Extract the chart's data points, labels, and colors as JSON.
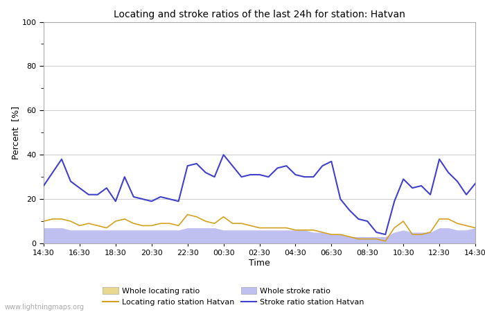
{
  "title": "Locating and stroke ratios of the last 24h for station: Hatvan",
  "ylabel": "Percent  [%]",
  "xlabel": "Time",
  "watermark": "www.lightningmaps.org",
  "xlabels": [
    "14:30",
    "16:30",
    "18:30",
    "20:30",
    "22:30",
    "00:30",
    "02:30",
    "04:30",
    "06:30",
    "08:30",
    "10:30",
    "12:30",
    "14:30"
  ],
  "ylim": [
    0,
    100
  ],
  "yticks": [
    0,
    20,
    40,
    60,
    80,
    100
  ],
  "bg_color": "#ffffff",
  "plot_bg_color": "#ffffff",
  "grid_color": "#cccccc",
  "whole_locating_color": "#e8d890",
  "whole_stroke_color": "#c0c0f0",
  "locating_station_color": "#d4a020",
  "stroke_station_color": "#4040cc",
  "x": [
    0,
    1,
    2,
    3,
    4,
    5,
    6,
    7,
    8,
    9,
    10,
    11,
    12,
    13,
    14,
    15,
    16,
    17,
    18,
    19,
    20,
    21,
    22,
    23,
    24,
    25,
    26,
    27,
    28,
    29,
    30,
    31,
    32,
    33,
    34,
    35,
    36,
    37,
    38,
    39,
    40,
    41,
    42,
    43,
    44,
    45,
    46,
    47,
    48
  ],
  "stroke_station": [
    26,
    32,
    38,
    28,
    25,
    22,
    22,
    25,
    19,
    30,
    21,
    20,
    19,
    21,
    20,
    19,
    35,
    36,
    32,
    30,
    40,
    35,
    30,
    31,
    31,
    30,
    34,
    35,
    31,
    30,
    30,
    35,
    37,
    20,
    15,
    11,
    10,
    5,
    4,
    19,
    29,
    25,
    26,
    22,
    38,
    32,
    28,
    22,
    27
  ],
  "locating_station": [
    10,
    11,
    11,
    10,
    8,
    9,
    8,
    7,
    10,
    11,
    9,
    8,
    8,
    9,
    9,
    8,
    13,
    12,
    10,
    9,
    12,
    9,
    9,
    8,
    7,
    7,
    7,
    7,
    6,
    6,
    6,
    5,
    4,
    4,
    3,
    2,
    2,
    2,
    1,
    7,
    10,
    4,
    4,
    5,
    11,
    11,
    9,
    8,
    7
  ],
  "whole_stroke": [
    7,
    7,
    7,
    6,
    6,
    6,
    6,
    6,
    6,
    6,
    6,
    6,
    6,
    6,
    6,
    6,
    7,
    7,
    7,
    7,
    6,
    6,
    6,
    6,
    6,
    6,
    6,
    6,
    6,
    6,
    5,
    5,
    4,
    4,
    3,
    3,
    3,
    3,
    3,
    5,
    6,
    5,
    5,
    5,
    7,
    7,
    6,
    6,
    7
  ],
  "whole_locating": [
    3,
    3,
    3,
    3,
    3,
    3,
    3,
    3,
    3,
    3,
    3,
    3,
    3,
    3,
    3,
    3,
    3,
    3,
    3,
    3,
    3,
    3,
    3,
    3,
    3,
    3,
    3,
    3,
    3,
    3,
    2,
    2,
    2,
    2,
    2,
    2,
    2,
    2,
    2,
    3,
    3,
    3,
    3,
    3,
    3,
    3,
    3,
    3,
    3
  ]
}
